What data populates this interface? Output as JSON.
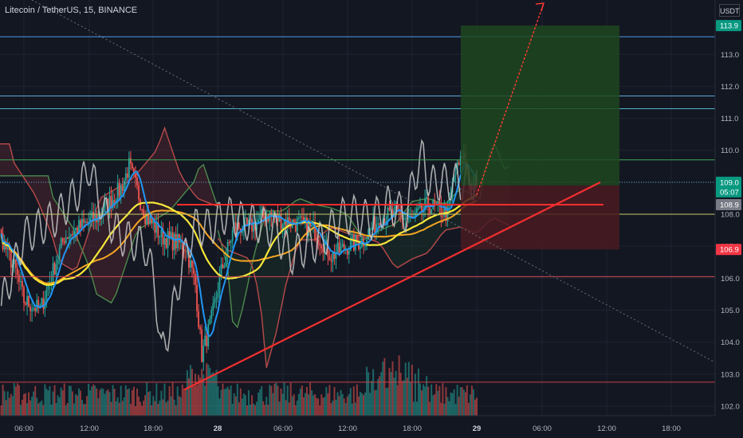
{
  "header": {
    "title": "Litecoin / TetherUS, 15, BINANCE",
    "currency": "USDT"
  },
  "colors": {
    "background": "#131722",
    "grid": "#1f2333",
    "axis_text": "#b2b5be",
    "price_up": "#26a69a",
    "price_down": "#ef5350",
    "target_zone": "#1e4620",
    "stop_zone": "#4a1b21",
    "trendline": "#f22f2f"
  },
  "chart_data": {
    "type": "line",
    "title": "Litecoin / TetherUS, 15, BINANCE",
    "xlabel": "",
    "ylabel": "",
    "x_ticks": [
      "06:00",
      "12:00",
      "18:00",
      "28",
      "06:00",
      "12:00",
      "18:00",
      "29",
      "06:00",
      "12:00",
      "18:00"
    ],
    "y_ticks": [
      102.0,
      103.0,
      104.0,
      105.0,
      106.0,
      107.0,
      108.0,
      109.0,
      110.0,
      111.0,
      112.0,
      113.0
    ],
    "ylim": [
      101.7,
      114.7
    ],
    "price_labels": [
      {
        "value": 113.9,
        "label": "113.9",
        "color": "#089981",
        "text_color": "#ffffff"
      },
      {
        "value": 109.0,
        "label": "109.0",
        "color": "#089981",
        "text_color": "#ffffff"
      },
      {
        "value": 108.7,
        "label": "05:07",
        "color": "#089981",
        "text_color": "#ffffff"
      },
      {
        "value": 108.3,
        "label": "108.9",
        "color": "#787b86",
        "text_color": "#ffffff"
      },
      {
        "value": 106.9,
        "label": "106.9",
        "color": "#f23645",
        "text_color": "#ffffff"
      }
    ],
    "horizontal_levels": [
      {
        "y": 113.55,
        "color": "#4c9be8"
      },
      {
        "y": 111.7,
        "color": "#5fa8d3"
      },
      {
        "y": 111.3,
        "color": "#4fb8c9"
      },
      {
        "y": 109.7,
        "color": "#3ea857"
      },
      {
        "y": 109.0,
        "color": "#5fa8d3",
        "dashed": true
      },
      {
        "y": 108.0,
        "color": "#c9c96b"
      },
      {
        "y": 106.05,
        "color": "#d94b55"
      },
      {
        "y": 102.75,
        "color": "#c94048"
      }
    ],
    "position": {
      "entry": 108.9,
      "target": 113.9,
      "stop": 106.9,
      "start_x": "29 -00:15",
      "end_x": "29 14:00"
    },
    "close": 109.0,
    "grid": true,
    "legend": "none"
  }
}
